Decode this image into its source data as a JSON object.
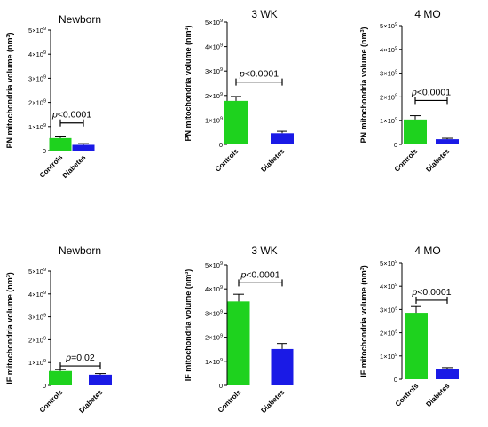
{
  "series_colors": {
    "Controls": "#1ed21e",
    "Diabetes": "#1a1ae6"
  },
  "chart_data": [
    {
      "type": "bar",
      "title": "Newborn",
      "ylabel_main": "PN mitochondria volume (nm",
      "ylabel_sup": "3",
      "ylabel_end": ")",
      "categories": [
        "Controls",
        "Diabetes"
      ],
      "values": [
        520000000,
        240000000
      ],
      "errors": [
        50000000,
        50000000
      ],
      "ylim": [
        0,
        5000000000
      ],
      "yticks": [
        {
          "value": 0,
          "base": "0",
          "exp": ""
        },
        {
          "value": 1000000000,
          "base": "1×10",
          "exp": "9"
        },
        {
          "value": 2000000000,
          "base": "2×10",
          "exp": "9"
        },
        {
          "value": 3000000000,
          "base": "3×10",
          "exp": "9"
        },
        {
          "value": 4000000000,
          "base": "4×10",
          "exp": "9"
        },
        {
          "value": 5000000000,
          "base": "5×10",
          "exp": "9"
        }
      ],
      "annotation": {
        "italic": "p",
        "rest": "<0.0001",
        "at": 1150000000
      }
    },
    {
      "type": "bar",
      "title": "3 WK",
      "ylabel_main": "PN mitochondria volume (nm",
      "ylabel_sup": "3",
      "ylabel_end": ")",
      "categories": [
        "Controls",
        "Diabetes"
      ],
      "values": [
        1780000000,
        460000000
      ],
      "errors": [
        180000000,
        80000000
      ],
      "ylim": [
        0,
        5000000000
      ],
      "yticks": [
        {
          "value": 0,
          "base": "0",
          "exp": ""
        },
        {
          "value": 1000000000,
          "base": "1×10",
          "exp": "9"
        },
        {
          "value": 2000000000,
          "base": "2×10",
          "exp": "9"
        },
        {
          "value": 3000000000,
          "base": "3×10",
          "exp": "9"
        },
        {
          "value": 4000000000,
          "base": "4×10",
          "exp": "9"
        },
        {
          "value": 5000000000,
          "base": "5×10",
          "exp": "9"
        }
      ],
      "annotation": {
        "italic": "p",
        "rest": "<0.0001",
        "at": 2550000000
      }
    },
    {
      "type": "bar",
      "title": "4  MO",
      "ylabel_main": "PN mitochondria volume (nm",
      "ylabel_sup": "3",
      "ylabel_end": ")",
      "categories": [
        "Controls",
        "Diabetes"
      ],
      "values": [
        1050000000,
        220000000
      ],
      "errors": [
        160000000,
        40000000
      ],
      "ylim": [
        0,
        5000000000
      ],
      "yticks": [
        {
          "value": 0,
          "base": "0",
          "exp": ""
        },
        {
          "value": 1000000000,
          "base": "1×10",
          "exp": "9"
        },
        {
          "value": 2000000000,
          "base": "2×10",
          "exp": "9"
        },
        {
          "value": 3000000000,
          "base": "3×10",
          "exp": "9"
        },
        {
          "value": 4000000000,
          "base": "4×10",
          "exp": "9"
        },
        {
          "value": 5000000000,
          "base": "5×10",
          "exp": "9"
        }
      ],
      "annotation": {
        "italic": "p",
        "rest": "<0.0001",
        "at": 1850000000
      }
    },
    {
      "type": "bar",
      "title": "Newborn",
      "ylabel_main": "IF mitochondria volume (nm",
      "ylabel_sup": "3",
      "ylabel_end": ")",
      "categories": [
        "Controls",
        "Diabetes"
      ],
      "values": [
        630000000,
        470000000
      ],
      "errors": [
        60000000,
        50000000
      ],
      "ylim": [
        0,
        5000000000
      ],
      "yticks": [
        {
          "value": 0,
          "base": "0",
          "exp": ""
        },
        {
          "value": 1000000000,
          "base": "1×10",
          "exp": "9"
        },
        {
          "value": 2000000000,
          "base": "2×10",
          "exp": "9"
        },
        {
          "value": 3000000000,
          "base": "3×10",
          "exp": "9"
        },
        {
          "value": 4000000000,
          "base": "4×10",
          "exp": "9"
        },
        {
          "value": 5000000000,
          "base": "5×10",
          "exp": "9"
        }
      ],
      "annotation": {
        "italic": "p",
        "rest": "=0.02",
        "at": 850000000
      }
    },
    {
      "type": "bar",
      "title": "3 WK",
      "ylabel_main": "IF mitochondria volume (nm",
      "ylabel_sup": "3",
      "ylabel_end": ")",
      "categories": [
        "Controls",
        "Diabetes"
      ],
      "values": [
        3480000000,
        1510000000
      ],
      "errors": [
        300000000,
        230000000
      ],
      "ylim": [
        0,
        5000000000
      ],
      "yticks": [
        {
          "value": 0,
          "base": "0",
          "exp": ""
        },
        {
          "value": 1000000000,
          "base": "1×10",
          "exp": "9"
        },
        {
          "value": 2000000000,
          "base": "2×10",
          "exp": "9"
        },
        {
          "value": 3000000000,
          "base": "3×10",
          "exp": "9"
        },
        {
          "value": 4000000000,
          "base": "4×10",
          "exp": "9"
        },
        {
          "value": 5000000000,
          "base": "5×10",
          "exp": "9"
        }
      ],
      "annotation": {
        "italic": "p",
        "rest": "<0.0001",
        "at": 4250000000
      }
    },
    {
      "type": "bar",
      "title": "4  MO",
      "ylabel_main": "IF mitochondria volume (nm",
      "ylabel_sup": "3",
      "ylabel_end": ")",
      "categories": [
        "Controls",
        "Diabetes"
      ],
      "values": [
        2860000000,
        450000000
      ],
      "errors": [
        300000000,
        50000000
      ],
      "ylim": [
        0,
        5000000000
      ],
      "yticks": [
        {
          "value": 0,
          "base": "0",
          "exp": ""
        },
        {
          "value": 1000000000,
          "base": "1×10",
          "exp": "9"
        },
        {
          "value": 2000000000,
          "base": "2×10",
          "exp": "9"
        },
        {
          "value": 3000000000,
          "base": "3×10",
          "exp": "9"
        },
        {
          "value": 4000000000,
          "base": "4×10",
          "exp": "9"
        },
        {
          "value": 5000000000,
          "base": "5×10",
          "exp": "9"
        }
      ],
      "annotation": {
        "italic": "p",
        "rest": "<0.0001",
        "at": 3400000000
      }
    }
  ]
}
